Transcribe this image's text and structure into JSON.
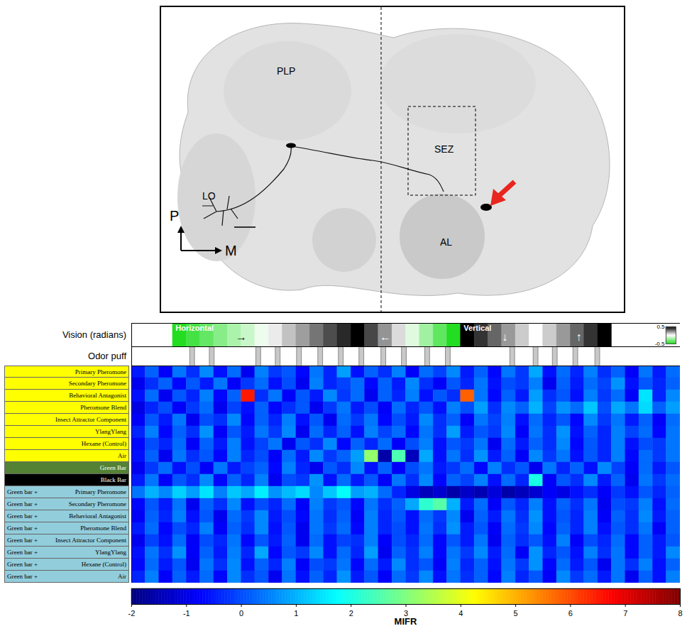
{
  "image": {
    "labels": [
      "LO",
      "PLP",
      "SEZ",
      "AL"
    ],
    "orientation": [
      "P",
      "M"
    ]
  },
  "chart_data": {
    "type": "heatmap",
    "vision": {
      "label": "Vision (radians)",
      "values": [
        null,
        null,
        null,
        -0.5,
        -0.42,
        -0.35,
        -0.27,
        -0.19,
        -0.12,
        -0.04,
        0.04,
        0.12,
        0.19,
        0.27,
        0.35,
        0.42,
        0.5,
        0.36,
        0.21,
        0.07,
        -0.07,
        -0.21,
        -0.36,
        -0.5,
        0.5,
        0.4,
        0.3,
        0.2,
        0.1,
        0,
        0.1,
        0.2,
        0.3,
        0.4,
        0.5,
        null,
        null,
        null,
        null,
        null
      ],
      "colorbar": {
        "range": [
          -0.5,
          0.5
        ],
        "ticks": [
          -0.5,
          0.5
        ]
      },
      "annotations": [
        {
          "text": "Horizontal",
          "x": 3.2
        },
        {
          "text": "→",
          "x": 8
        },
        {
          "text": "←",
          "x": 18.5
        },
        {
          "text": "Vertical",
          "x": 24.2
        },
        {
          "text": "↓",
          "x": 27.2
        },
        {
          "text": "↑",
          "x": 32.6
        }
      ]
    },
    "odor": {
      "label": "Odor puff",
      "puffs": [
        4.26,
        5.69,
        9.08,
        10.5,
        12.05,
        13.6,
        15.1,
        16.6,
        18.2,
        19.7,
        21.4,
        22.9,
        27.6,
        29.3,
        30.7,
        32.2,
        33.8
      ],
      "duration": 0.35
    },
    "rows": [
      {
        "label": "Primary Pheromone",
        "color": "#ffff00"
      },
      {
        "label": "Secondary Pheromone",
        "color": "#ffff00"
      },
      {
        "label": "Behavioral Antagonist",
        "color": "#ffff00"
      },
      {
        "label": "Pheromone Blend",
        "color": "#ffff00"
      },
      {
        "label": "Insect Attractor Component",
        "color": "#ffff00"
      },
      {
        "label": "YlangYlang",
        "color": "#ffff00"
      },
      {
        "label": "Hexane (Control)",
        "color": "#ffff00"
      },
      {
        "label": "Air",
        "color": "#ffff00"
      },
      {
        "label": "Green Bar",
        "color": "#548235"
      },
      {
        "label": "Black Bar",
        "color": "#000000"
      },
      {
        "prefix": "Green bar +",
        "label": "Primary Pheromone",
        "color": "#92cddc"
      },
      {
        "prefix": "Green bar +",
        "label": "Secondary Pheromone",
        "color": "#92cddc"
      },
      {
        "prefix": "Green bar +",
        "label": "Behavioral Antagonist",
        "color": "#92cddc"
      },
      {
        "prefix": "Green bar +",
        "label": "Pheromone Blend",
        "color": "#92cddc"
      },
      {
        "prefix": "Green bar +",
        "label": "Insect Attractor Component",
        "color": "#92cddc"
      },
      {
        "prefix": "Green bar +",
        "label": "YlangYlang",
        "color": "#92cddc"
      },
      {
        "prefix": "Green bar +",
        "label": "Hexane (Control)",
        "color": "#92cddc"
      },
      {
        "prefix": "Green bar +",
        "label": "Air",
        "color": "#92cddc"
      }
    ],
    "cells": [
      [
        -0.5,
        0.2,
        -0.8,
        0.4,
        -0.3,
        0.6,
        -0.6,
        0.3,
        -0.9,
        0.5,
        -0.2,
        0.1,
        -0.7,
        0.4,
        -0.4,
        0.8,
        -0.6,
        0.2,
        -0.3,
        0.5,
        -0.8,
        0.3,
        -0.1,
        0.6,
        -0.5,
        0.2,
        -0.7,
        0.4,
        -0.2,
        0.9,
        -0.6,
        0.3,
        -0.4,
        0.5,
        -0.3,
        0.2,
        -0.8,
        0.4,
        -0.5,
        0.3
      ],
      [
        -0.9,
        -0.3,
        0.2,
        -0.7,
        0.1,
        -0.5,
        0.4,
        -0.8,
        -0.2,
        0.3,
        -0.6,
        0.0,
        -0.9,
        0.5,
        -0.4,
        -0.1,
        0.3,
        -0.7,
        0.2,
        -0.5,
        0.6,
        -0.3,
        -0.8,
        0.1,
        -0.4,
        0.4,
        -0.6,
        0.0,
        -0.2,
        0.5,
        -0.9,
        0.2,
        -0.5,
        0.3,
        -0.1,
        0.7,
        -0.6,
        0.1,
        -0.4,
        0.2
      ],
      [
        -0.6,
        0.3,
        -0.9,
        0.1,
        -0.4,
        0.5,
        -0.7,
        0.2,
        6.5,
        -0.3,
        0.4,
        -0.8,
        0.1,
        -0.5,
        0.6,
        -0.2,
        0.3,
        -0.9,
        0.2,
        -0.4,
        0.5,
        -0.6,
        0.1,
        -0.3,
        5.8,
        0.4,
        -0.7,
        0.2,
        -0.5,
        0.8,
        -0.3,
        0.1,
        -0.6,
        0.5,
        -0.2,
        0.3,
        -0.8,
        1.5,
        -0.4,
        0.6
      ],
      [
        -1.0,
        -0.4,
        0.0,
        -0.8,
        -0.2,
        0.3,
        -0.9,
        -0.1,
        -0.6,
        0.2,
        -0.7,
        -0.3,
        0.1,
        -0.9,
        -0.2,
        0.4,
        -0.5,
        0.0,
        -0.8,
        0.3,
        -0.4,
        0.1,
        -0.6,
        0.5,
        0.0,
        0.8,
        -0.3,
        0.6,
        0.2,
        1.0,
        -0.1,
        0.7,
        0.3,
        1.2,
        0.0,
        0.9,
        0.4,
        1.4,
        0.2,
        0.8
      ],
      [
        -0.8,
        0.1,
        -0.5,
        0.4,
        -0.9,
        0.0,
        -0.3,
        0.6,
        -0.7,
        0.2,
        -0.4,
        0.5,
        -0.6,
        0.1,
        -0.9,
        0.3,
        -0.2,
        0.4,
        -0.7,
        0.0,
        -0.5,
        0.6,
        -0.3,
        0.2,
        -0.8,
        0.4,
        -0.1,
        0.5,
        -0.6,
        0.3,
        -0.4,
        0.1,
        -0.7,
        0.6,
        -0.2,
        0.4,
        -0.5,
        0.2,
        -0.8,
        0.3
      ],
      [
        -0.4,
        0.5,
        -0.7,
        0.2,
        -0.3,
        0.7,
        -0.8,
        0.1,
        -0.5,
        0.4,
        -0.2,
        0.6,
        -0.9,
        0.3,
        -0.4,
        0.2,
        -0.6,
        0.5,
        -0.1,
        0.3,
        -0.7,
        0.4,
        -0.3,
        0.8,
        -0.5,
        0.1,
        -0.2,
        0.6,
        -0.8,
        0.4,
        -0.3,
        0.7,
        -0.6,
        0.2,
        -0.4,
        0.5,
        -0.1,
        0.3,
        -0.7,
        0.4
      ],
      [
        -0.7,
        0.0,
        -0.4,
        0.3,
        -0.8,
        0.2,
        -0.5,
        0.5,
        -0.6,
        -0.1,
        0.4,
        -0.9,
        0.1,
        -0.3,
        0.6,
        -0.7,
        0.2,
        -0.4,
        0.3,
        -0.8,
        0.0,
        0.5,
        -0.6,
        0.1,
        -0.2,
        0.4,
        -0.9,
        0.3,
        -0.5,
        0.2,
        -0.3,
        0.6,
        -0.7,
        0.1,
        -0.4,
        0.5,
        -0.6,
        0.0,
        -0.2,
        0.4
      ],
      [
        -0.6,
        0.2,
        -0.9,
        0.4,
        -0.3,
        0.1,
        -0.7,
        0.5,
        -0.4,
        0.0,
        -0.8,
        0.3,
        -0.5,
        0.6,
        -0.2,
        0.2,
        0.8,
        3.2,
        -1.6,
        2.5,
        -1.4,
        0.9,
        -0.6,
        0.4,
        -0.3,
        0.7,
        -0.5,
        0.2,
        -0.8,
        0.6,
        -0.2,
        0.4,
        -0.6,
        0.1,
        -0.4,
        0.5,
        -0.7,
        0.3,
        -0.2,
        0.4
      ],
      [
        -0.9,
        -0.2,
        0.3,
        -0.6,
        0.0,
        -0.8,
        0.4,
        -0.5,
        -0.1,
        0.2,
        -0.7,
        0.5,
        -0.4,
        -0.9,
        0.1,
        -0.3,
        0.6,
        -0.6,
        0.2,
        -0.8,
        0.0,
        0.4,
        -0.5,
        -0.2,
        0.3,
        -0.7,
        0.5,
        -0.3,
        0.1,
        -0.9,
        0.4,
        -0.4,
        0.2,
        -0.6,
        0.6,
        -0.1,
        -0.8,
        0.3,
        -0.5,
        0.1
      ],
      [
        -0.5,
        0.4,
        -0.8,
        0.1,
        -0.3,
        0.6,
        -0.7,
        0.2,
        -0.4,
        0.5,
        -0.9,
        0.0,
        -0.2,
        0.7,
        -0.6,
        0.3,
        -0.5,
        0.1,
        -0.8,
        0.4,
        -0.3,
        0.6,
        -0.7,
        0.2,
        -0.1,
        0.5,
        -0.6,
        0.3,
        -0.4,
        2.0,
        -0.8,
        0.1,
        -0.3,
        0.6,
        -0.5,
        0.2,
        -0.9,
        0.4,
        -0.2,
        0.3
      ],
      [
        0.4,
        1.0,
        0.6,
        1.3,
        0.8,
        1.5,
        0.5,
        1.2,
        0.9,
        1.6,
        0.7,
        1.1,
        1.4,
        0.6,
        1.2,
        1.8,
        0.8,
        1.0,
        0.3,
        -0.4,
        -1.0,
        -1.4,
        -1.2,
        -1.6,
        -1.3,
        -1.5,
        -1.1,
        -1.6,
        -1.4,
        -1.2,
        -0.8,
        -1.0,
        -0.6,
        -0.3,
        -0.8,
        -0.2,
        -0.6,
        0.1,
        -0.4,
        0.2
      ],
      [
        -0.7,
        0.1,
        -0.5,
        0.4,
        -0.9,
        0.2,
        -0.3,
        0.6,
        -0.6,
        0.0,
        -0.4,
        0.3,
        -0.8,
        0.5,
        -0.2,
        0.1,
        -0.7,
        0.4,
        -0.3,
        0.2,
        0.9,
        2.2,
        2.6,
        1.0,
        -0.5,
        0.3,
        -0.8,
        0.1,
        -0.4,
        0.5,
        -0.6,
        0.2,
        -0.3,
        0.4,
        -0.9,
        0.0,
        -0.2,
        0.5,
        -0.6,
        0.3
      ],
      [
        -0.8,
        0.2,
        -0.4,
        0.5,
        -0.6,
        0.1,
        -0.9,
        0.3,
        -0.2,
        0.6,
        -0.5,
        0.0,
        -0.7,
        0.4,
        -0.3,
        0.2,
        -0.8,
        0.5,
        -0.4,
        0.1,
        -0.6,
        0.3,
        -0.2,
        0.6,
        -0.9,
        0.2,
        -0.5,
        0.4,
        -0.3,
        0.7,
        -0.6,
        0.1,
        -0.4,
        0.5,
        -0.8,
        0.2,
        -0.3,
        0.6,
        -0.5,
        0.2
      ],
      [
        -0.5,
        0.3,
        -0.7,
        0.0,
        -0.4,
        0.5,
        -0.8,
        0.2,
        -0.3,
        0.6,
        -0.6,
        0.1,
        -0.9,
        0.4,
        -0.2,
        0.3,
        -0.7,
        0.5,
        -0.4,
        0.0,
        -0.6,
        0.4,
        -0.3,
        0.7,
        -0.5,
        0.1,
        -0.8,
        0.3,
        -0.2,
        0.6,
        -0.7,
        0.2,
        -0.4,
        0.5,
        -0.6,
        0.1,
        -0.3,
        0.4,
        -0.8,
        0.2
      ],
      [
        -0.9,
        -0.1,
        -0.6,
        0.3,
        -0.8,
        0.0,
        -0.4,
        0.4,
        -0.7,
        0.1,
        -0.5,
        0.2,
        -0.9,
        0.3,
        -0.6,
        -0.1,
        -0.3,
        0.5,
        -0.8,
        0.0,
        -0.4,
        0.3,
        -0.7,
        0.1,
        -0.5,
        0.4,
        -0.9,
        0.2,
        -0.3,
        0.1,
        -0.6,
        0.5,
        -0.8,
        0.0,
        -0.4,
        0.3,
        -0.7,
        0.2,
        -0.5,
        0.1
      ],
      [
        -0.6,
        0.4,
        -0.3,
        0.7,
        -0.8,
        0.2,
        -0.5,
        0.5,
        -0.4,
        0.9,
        -0.7,
        0.1,
        -0.2,
        0.6,
        -0.6,
        0.3,
        -0.4,
        0.8,
        -0.9,
        0.2,
        -0.3,
        0.5,
        -0.7,
        0.4,
        -0.2,
        0.6,
        -0.5,
        0.3,
        -0.8,
        0.7,
        -0.4,
        0.1,
        -0.6,
        0.5,
        -0.3,
        0.4,
        -0.7,
        0.2,
        -0.5,
        0.6
      ],
      [
        -0.7,
        0.3,
        -0.5,
        0.1,
        -0.9,
        0.4,
        -0.3,
        0.6,
        -0.6,
        0.2,
        -0.4,
        0.5,
        -0.8,
        0.0,
        -0.2,
        0.4,
        -0.7,
        0.3,
        -0.5,
        0.6,
        -0.3,
        0.1,
        -0.8,
        0.5,
        -0.4,
        0.2,
        -0.6,
        0.4,
        -0.2,
        0.7,
        -0.7,
        0.3,
        -0.5,
        0.1,
        -0.9,
        0.4,
        -0.3,
        0.5,
        -0.6,
        0.2
      ],
      [
        -0.4,
        0.5,
        -0.8,
        0.2,
        -0.5,
        0.3,
        -0.7,
        0.6,
        -0.3,
        0.1,
        -0.9,
        0.4,
        -0.6,
        0.2,
        -0.4,
        0.7,
        -0.5,
        0.1,
        -0.8,
        0.3,
        -0.2,
        0.6,
        -0.6,
        0.4,
        -0.3,
        0.2,
        -0.7,
        0.5,
        -0.4,
        0.1,
        -0.8,
        0.6,
        -0.2,
        0.3,
        -0.5,
        0.4,
        -0.9,
        0.2,
        -0.6,
        0.5
      ]
    ],
    "colorbar": {
      "label": "MIFR",
      "range": [
        -2,
        8
      ],
      "ticks": [
        -2,
        -1,
        0,
        1,
        2,
        3,
        4,
        5,
        6,
        7,
        8
      ]
    }
  }
}
